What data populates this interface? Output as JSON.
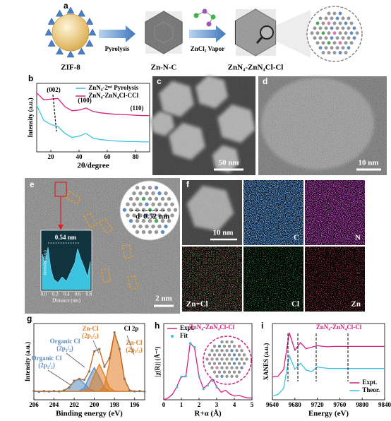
{
  "panel_labels": [
    "a",
    "b",
    "c",
    "d",
    "e",
    "f",
    "g",
    "h",
    "i"
  ],
  "scheme": {
    "zif": "ZIF-8",
    "step1": "Pyrolysis",
    "intermediate": "Zn-N-C",
    "step2": "ZnCl₂ Vapor",
    "product": "ZnN₄-ZnN₄Cl-Cl"
  },
  "images": {
    "c": {
      "scale": "50 nm"
    },
    "d": {
      "scale": "10 nm"
    },
    "e": {
      "d_label": "d",
      "d_value": "0.52 nm",
      "profile_peak": "0.54 nm",
      "profile_ylabel": "Intensity (a.u.)",
      "profile_xlabel": "Distance (nm)",
      "profile_xticks": [
        "0.0",
        "0.2",
        "0.4",
        "0.6",
        "0.8"
      ],
      "scale": "2 nm"
    },
    "f": {
      "scale": "10 nm",
      "maps": [
        "C",
        "N",
        "Zn+Cl",
        "Cl",
        "Zn"
      ]
    }
  },
  "chart_data": [
    {
      "type": "line",
      "x_label": "2θ/degree",
      "y_label": "Intensity (a.u.)",
      "x": [
        10,
        15,
        20,
        25,
        30,
        35,
        40,
        45,
        50,
        55,
        60,
        65,
        70,
        75,
        80,
        85,
        90
      ],
      "xlim": [
        10,
        90
      ],
      "xticks": [
        20,
        40,
        60,
        80
      ],
      "ylim": [
        0,
        10
      ],
      "legend": "upper right",
      "series": [
        {
          "name": "ZnN₄-2ⁿᵈ Pyrolysis",
          "color": "#3cc3e0",
          "style": "line",
          "values": [
            6.8,
            4.6,
            4.0,
            3.7,
            2.7,
            2.1,
            2.3,
            2.7,
            2.0,
            1.8,
            1.7,
            1.6,
            1.55,
            1.5,
            1.5,
            1.45,
            1.45
          ]
        },
        {
          "name": "ZnN₄-ZnN₄Cl-CCl",
          "color": "#d6217f",
          "style": "line",
          "values": [
            8.6,
            7.6,
            7.7,
            7.8,
            6.6,
            6.0,
            6.1,
            6.4,
            5.9,
            5.7,
            5.6,
            5.5,
            5.45,
            5.4,
            5.35,
            5.3,
            5.3
          ]
        }
      ],
      "annotations": [
        {
          "lines": [
            "(002)"
          ],
          "color": "#000000"
        },
        {
          "lines": [
            "(100)"
          ],
          "color": "#000000"
        },
        {
          "lines": [
            "(110)"
          ],
          "color": "#000000"
        }
      ]
    },
    {
      "type": "line",
      "x_label": "Binding energy (eV)",
      "y_label": "Intensity (a.u.)",
      "x": [
        206,
        205.5,
        205,
        204.5,
        204,
        203.5,
        203,
        202.5,
        202,
        201.5,
        201,
        200.5,
        200,
        199.5,
        199,
        198.5,
        198,
        197.5,
        197,
        196.5,
        196,
        195.5,
        195
      ],
      "xlim": [
        206,
        195
      ],
      "xticks": [
        206,
        204,
        202,
        200,
        198,
        196
      ],
      "ylim": [
        0,
        9
      ],
      "series": [
        {
          "color": "#5a8ac0",
          "style": "line",
          "fill": true,
          "values": [
            1,
            1,
            1,
            1,
            1,
            1,
            1.1,
            1.49,
            2.2,
            2.48,
            1.91,
            1.28,
            1.04,
            1,
            1,
            1,
            1,
            1,
            1,
            1,
            1,
            1,
            1
          ]
        },
        {
          "color": "#5a8ac0",
          "style": "line",
          "fill": true,
          "values": [
            1,
            1,
            1,
            1,
            1,
            1,
            1,
            1,
            1,
            1.03,
            1.38,
            2.7,
            3.8,
            2.7,
            1.38,
            1.03,
            1,
            1,
            1,
            1,
            1,
            1,
            1
          ]
        },
        {
          "color": "#e07b20",
          "style": "line",
          "fill": true,
          "values": [
            1,
            1,
            1,
            1,
            1,
            1,
            1,
            1,
            1,
            1,
            1.03,
            1.43,
            2.94,
            4.2,
            2.94,
            1.43,
            1.03,
            1,
            1,
            1,
            1,
            1,
            1
          ]
        },
        {
          "color": "#e07b20",
          "style": "line",
          "fill": true,
          "values": [
            1,
            1,
            1,
            1,
            1,
            1,
            1,
            1,
            1,
            1,
            1,
            1,
            1,
            1.04,
            1.62,
            4.4,
            7.86,
            6.08,
            2.39,
            1.14,
            1,
            1,
            1
          ]
        },
        {
          "color": "#c0661a",
          "style": "line",
          "values": [
            1,
            1,
            1,
            1,
            1,
            1,
            1.1,
            1.49,
            2.2,
            2.51,
            2.32,
            3.41,
            5.78,
            5.94,
            3.94,
            4.86,
            7.89,
            6.08,
            2.39,
            1.14,
            1,
            1,
            1
          ]
        },
        {
          "color": "#777777",
          "style": "dots",
          "values": [
            1.05,
            0.95,
            1.02,
            0.98,
            1.03,
            1.0,
            1.12,
            1.45,
            2.25,
            2.45,
            2.35,
            3.35,
            5.7,
            5.98,
            3.9,
            4.9,
            7.95,
            6.0,
            2.45,
            1.1,
            1.0,
            1.03,
            0.97
          ]
        }
      ],
      "annotations": [
        {
          "lines": [
            "Cl 2p"
          ],
          "color": "#000000"
        },
        {
          "lines": [
            "Zn-Cl",
            "(2p₁/₂)"
          ],
          "color": "#e07b20"
        },
        {
          "lines": [
            "Zn-Cl",
            "(2p₃/₂)"
          ],
          "color": "#e07b20"
        },
        {
          "lines": [
            "Organic Cl",
            "(2p₃/₂)"
          ],
          "color": "#5a8ac0"
        },
        {
          "lines": [
            "Organic Cl",
            "(2p₁/₂)"
          ],
          "color": "#5a8ac0"
        }
      ]
    },
    {
      "type": "line",
      "x_label": "R+α (Å)",
      "y_label": "|χ(R)| (Å⁻³)",
      "x": [
        0,
        0.25,
        0.5,
        0.75,
        1,
        1.25,
        1.5,
        1.75,
        2,
        2.25,
        2.5,
        2.75,
        3,
        3.25,
        3.5,
        3.75,
        4,
        4.25,
        4.5,
        4.75,
        5
      ],
      "xlim": [
        0,
        5
      ],
      "xticks": [
        0,
        1,
        2,
        3,
        4,
        5
      ],
      "ylim": [
        0,
        2
      ],
      "legend": "upper left",
      "series": [
        {
          "name": "Expt.",
          "color": "#d6217f",
          "style": "line",
          "values": [
            0,
            0.05,
            0.15,
            0.35,
            0.62,
            0.6,
            1.5,
            1.35,
            0.6,
            0.3,
            0.4,
            0.55,
            0.35,
            0.2,
            0.25,
            0.15,
            0.1,
            0.12,
            0.08,
            0.05,
            0.05
          ]
        },
        {
          "name": "Fit",
          "color": "#3cc3e0",
          "style": "dots",
          "values": [
            null,
            null,
            null,
            0.33,
            0.6,
            0.62,
            1.48,
            1.38,
            0.62,
            0.28,
            0.38,
            0.5,
            0.33,
            null,
            null,
            null,
            null,
            null,
            null,
            null,
            null
          ]
        }
      ],
      "annotations": [
        {
          "lines": [
            "ZnN₄-ZnN₄Cl-Cl"
          ],
          "color": "#d6217f"
        }
      ]
    },
    {
      "type": "line",
      "x_label": "Energy (eV)",
      "y_label": "XANES (a.u.)",
      "x": [
        9640,
        9650,
        9660,
        9670,
        9680,
        9690,
        9700,
        9710,
        9720,
        9730,
        9740,
        9750,
        9760,
        9770,
        9780,
        9790,
        9800,
        9810,
        9820,
        9830,
        9840
      ],
      "xlim": [
        9640,
        9840
      ],
      "xticks": [
        9640,
        9680,
        9720,
        9760,
        9800,
        9840
      ],
      "ylim": [
        0,
        10
      ],
      "legend": "lower right",
      "series": [
        {
          "name": "Expt.",
          "color": "#d6217f",
          "style": "line",
          "values": [
            3.0,
            3.1,
            4.0,
            8.8,
            6.5,
            7.5,
            6.7,
            6.9,
            7.1,
            7.0,
            6.95,
            7.0,
            7.0,
            7.0,
            7.0,
            7.0,
            7.0,
            7.0,
            7.0,
            7.0,
            7.0
          ]
        },
        {
          "name": "Theor.",
          "color": "#3cc3e0",
          "style": "line",
          "values": [
            0.5,
            0.7,
            1.5,
            5.8,
            4.0,
            4.8,
            3.9,
            3.7,
            4.3,
            4.2,
            4.1,
            4.1,
            4.1,
            4.1,
            4.1,
            4.1,
            4.1,
            4.1,
            4.1,
            4.1,
            4.1
          ]
        }
      ],
      "annotations": [
        {
          "lines": [
            "ZnN₄-ZnN₄Cl-Cl"
          ],
          "color": "#d6217f"
        }
      ]
    }
  ]
}
